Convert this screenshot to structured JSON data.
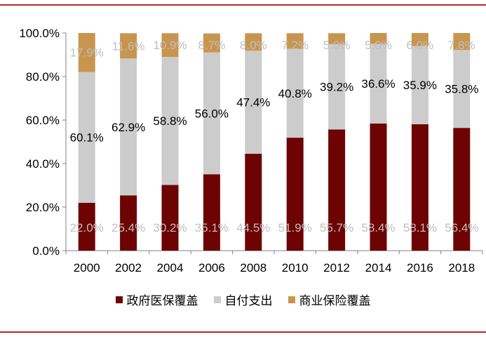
{
  "chart_data": {
    "type": "bar",
    "stacked": true,
    "categories": [
      "2000",
      "2002",
      "2004",
      "2006",
      "2008",
      "2010",
      "2012",
      "2014",
      "2016",
      "2018"
    ],
    "series": [
      {
        "name": "政府医保覆盖",
        "color": "#6d0303",
        "label_color": "#bfbfbf",
        "values": [
          22.0,
          25.4,
          30.2,
          35.1,
          44.5,
          51.9,
          55.7,
          58.4,
          58.1,
          56.4
        ],
        "labels": [
          "22.0%",
          "25.4%",
          "30.2%",
          "35.1%",
          "44.5%",
          "51.9%",
          "55.7%",
          "58.4%",
          "58.1%",
          "56.4%"
        ]
      },
      {
        "name": "自付支出",
        "color": "#cccccc",
        "label_color": "#000000",
        "values": [
          60.1,
          62.9,
          58.8,
          56.0,
          47.4,
          40.8,
          39.2,
          36.6,
          35.9,
          35.8
        ],
        "labels": [
          "60.1%",
          "62.9%",
          "58.8%",
          "56.0%",
          "47.4%",
          "40.8%",
          "39.2%",
          "36.6%",
          "35.9%",
          "35.8%"
        ]
      },
      {
        "name": "商业保险覆盖",
        "color": "#c8954f",
        "label_color": "#bfbfbf",
        "values": [
          17.9,
          11.6,
          10.9,
          8.7,
          8.0,
          7.2,
          5.0,
          5.0,
          6.0,
          7.8
        ],
        "labels": [
          "17.9%",
          "11.6%",
          "10.9%",
          "8.7%",
          "8.0%",
          "7.2%",
          "5.0%",
          "5.0%",
          "6.0%",
          "7.8%"
        ]
      }
    ],
    "ylim": [
      0,
      100
    ],
    "yticks": [
      0,
      20,
      40,
      60,
      80,
      100
    ],
    "ytick_labels": [
      "0.0%",
      "20.0%",
      "40.0%",
      "60.0%",
      "80.0%",
      "100.0%"
    ],
    "title": "",
    "xlabel": "",
    "ylabel": "",
    "legend_position": "bottom",
    "grid": false
  }
}
